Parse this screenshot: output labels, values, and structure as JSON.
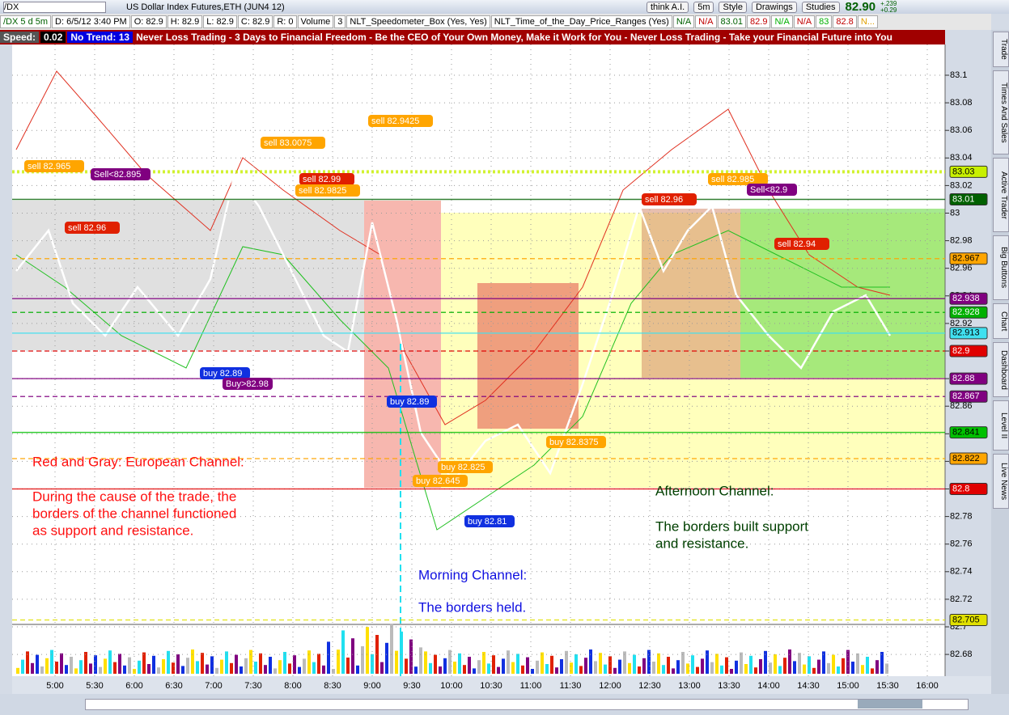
{
  "header": {
    "symbol": "/DX",
    "title": "US Dollar Index Futures,ETH (JUN4 12)",
    "buttons": [
      "think A.I.",
      "5m",
      "Style",
      "Drawings",
      "Studies"
    ],
    "last": "82.90",
    "change": "+.239",
    "change_pct": "+0.29"
  },
  "info_bar": [
    {
      "text": "/DX 5 d 5m",
      "color": "#006000"
    },
    {
      "text": "D: 6/5/12 3:40 PM",
      "color": "#000"
    },
    {
      "text": "O: 82.9",
      "color": "#000"
    },
    {
      "text": "H: 82.9",
      "color": "#000"
    },
    {
      "text": "L: 82.9",
      "color": "#000"
    },
    {
      "text": "C: 82.9",
      "color": "#000"
    },
    {
      "text": "R: 0",
      "color": "#000"
    },
    {
      "text": "Volume",
      "color": "#000"
    },
    {
      "text": "3",
      "color": "#000"
    },
    {
      "text": "NLT_Speedometer_Box (Yes, Yes)",
      "color": "#000"
    },
    {
      "text": "NLT_Time_of_the_Day_Price_Ranges (Yes)",
      "color": "#000"
    },
    {
      "text": "N/A",
      "color": "#006000"
    },
    {
      "text": "N/A",
      "color": "#c00000"
    },
    {
      "text": "83.01",
      "color": "#006000"
    },
    {
      "text": "82.9",
      "color": "#c00000"
    },
    {
      "text": "N/A",
      "color": "#00b000"
    },
    {
      "text": "N/A",
      "color": "#c00000"
    },
    {
      "text": "83",
      "color": "#00b000"
    },
    {
      "text": "82.8",
      "color": "#c00000"
    },
    {
      "text": "N...",
      "color": "#e0a000"
    }
  ],
  "ticker": {
    "speed_label": "Speed:",
    "speed": "0.02",
    "trend": "No Trend: 13",
    "message": "Never Loss Trading - 3 Days to Financial Freedom - Be the CEO of Your Own Money, Make it Work for You - Never Loss Trading - Take your Financial Future into You"
  },
  "sidebar": [
    "Trade",
    "Times And Sales",
    "Active Trader",
    "Big Buttons",
    "Chart",
    "Dashboard",
    "Level II",
    "Live News"
  ],
  "price_axis": {
    "ylim": [
      82.661,
      83.121
    ],
    "yticks": [
      83.1,
      83.08,
      83.06,
      83.04,
      83.02,
      83,
      82.98,
      82.96,
      82.94,
      82.92,
      82.9,
      82.88,
      82.86,
      82.84,
      82.82,
      82.8,
      82.78,
      82.76,
      82.74,
      82.72,
      82.7,
      82.68
    ]
  },
  "price_tags": [
    {
      "value": 83.03,
      "color": "#c8f000"
    },
    {
      "value": 83.01,
      "color": "#006000"
    },
    {
      "value": 82.967,
      "color": "#ffa500"
    },
    {
      "value": 82.938,
      "color": "#800080"
    },
    {
      "value": 82.928,
      "color": "#00b000"
    },
    {
      "value": 82.913,
      "color": "#40e0f0"
    },
    {
      "value": 82.9,
      "color": "#e00000"
    },
    {
      "value": 82.88,
      "color": "#800080"
    },
    {
      "value": 82.867,
      "color": "#800080"
    },
    {
      "value": 82.841,
      "color": "#00c000"
    },
    {
      "value": 82.822,
      "color": "#ffa500"
    },
    {
      "value": 82.8,
      "color": "#e00000"
    },
    {
      "value": 82.705,
      "color": "#e0e000"
    }
  ],
  "time_axis": [
    "5:00",
    "5:30",
    "6:00",
    "6:30",
    "7:00",
    "7:30",
    "8:00",
    "8:30",
    "9:00",
    "9:30",
    "10:00",
    "10:30",
    "11:00",
    "11:30",
    "12:00",
    "12:30",
    "13:00",
    "13:30",
    "14:00",
    "14:30",
    "15:00",
    "15:30",
    "16:00"
  ],
  "trade_labels": [
    {
      "text": "sell 82.965",
      "color": "#ffa500"
    },
    {
      "text": "Sell<82.895",
      "color": "#800080"
    },
    {
      "text": "sell 82.96",
      "color": "#e02000"
    },
    {
      "text": "sell 83.0075",
      "color": "#ffa500"
    },
    {
      "text": "sell 82.99",
      "color": "#e02000"
    },
    {
      "text": "sell 82.9825",
      "color": "#ffa500"
    },
    {
      "text": "sell 82.9425",
      "color": "#ffa500"
    },
    {
      "text": "buy 82.89",
      "color": "#1030e0"
    },
    {
      "text": "Buy>82.98",
      "color": "#800080"
    },
    {
      "text": "buy 82.89",
      "color": "#1030e0"
    },
    {
      "text": "buy 82.825",
      "color": "#ffa500"
    },
    {
      "text": "buy 82.645",
      "color": "#ffa500"
    },
    {
      "text": "buy 82.81",
      "color": "#1030e0"
    },
    {
      "text": "buy 82.8375",
      "color": "#ffa500"
    },
    {
      "text": "sell 82.96",
      "color": "#e02000"
    },
    {
      "text": "sell 82.985",
      "color": "#ffa500"
    },
    {
      "text": "Sell<82.9",
      "color": "#800080"
    },
    {
      "text": "sell 82.94",
      "color": "#e02000"
    }
  ],
  "annotations": [
    {
      "color": "#ff1010",
      "lines": [
        "Red and Gray: European Channel:",
        "During the cause of the trade, the",
        "borders of the channel functioned",
        "as support and resistance."
      ]
    },
    {
      "color": "#1010e0",
      "lines": [
        "Morning Channel:",
        "The borders held."
      ]
    },
    {
      "color": "#004000",
      "lines": [
        "Afternoon Channel:",
        "The borders built support",
        "and resistance."
      ]
    }
  ]
}
